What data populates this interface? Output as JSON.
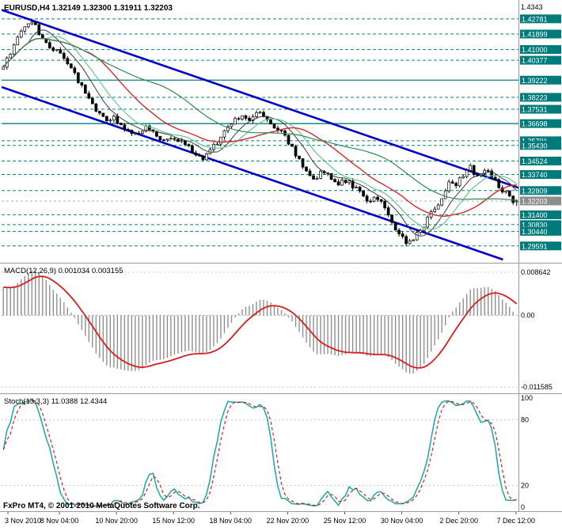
{
  "header": {
    "title": "EURUSD,H4 1.32149 1.32300 1.31911 1.32203"
  },
  "macd": {
    "header": "MACD(12,26,9) 0.001034 0.003155"
  },
  "stoch": {
    "header": "Stoch(13,3,3) 11.0388 12.4344"
  },
  "footer": {
    "copyright": "FxPro MT4, © 2001-2010 MetaQuotes Software Corp."
  },
  "chart_data": {
    "type": "candlestick",
    "symbol": "EURUSD",
    "timeframe": "H4",
    "title": "EURUSD,H4",
    "current_bar": {
      "open": 1.32149,
      "high": 1.323,
      "low": 1.31911,
      "close": 1.32203
    },
    "y_range": [
      1.288,
      1.436
    ],
    "num_bars": 145,
    "axis_max_label": "1.4343",
    "current_price": {
      "label": "1.32203",
      "value": 1.32203
    },
    "price_levels": [
      {
        "label": "1.42781",
        "value": 1.42781,
        "solid": false
      },
      {
        "label": "1.41899",
        "value": 1.41899,
        "solid": false
      },
      {
        "label": "1.41000",
        "value": 1.41,
        "solid": false
      },
      {
        "label": "1.40377",
        "value": 1.40377,
        "solid": false
      },
      {
        "label": "1.39222",
        "value": 1.39222,
        "solid": true
      },
      {
        "label": "1.38223",
        "value": 1.38223,
        "solid": false
      },
      {
        "label": "1.37531",
        "value": 1.37531,
        "solid": false
      },
      {
        "label": "1.36698",
        "value": 1.36698,
        "solid": true
      },
      {
        "label": "1.35701",
        "value": 1.35701,
        "solid": false
      },
      {
        "label": "1.35430",
        "value": 1.3543,
        "solid": false
      },
      {
        "label": "1.34524",
        "value": 1.34524,
        "solid": false
      },
      {
        "label": "1.33740",
        "value": 1.3374,
        "solid": false
      },
      {
        "label": "1.32809",
        "value": 1.32809,
        "solid": false
      },
      {
        "label": "1.31400",
        "value": 1.314,
        "solid": false
      },
      {
        "label": "1.30830",
        "value": 1.3083,
        "solid": false
      },
      {
        "label": "1.30440",
        "value": 1.3044,
        "solid": false
      },
      {
        "label": "1.29591",
        "value": 1.29591,
        "solid": false
      }
    ],
    "channel_lines": [
      {
        "name": "upper-trendline",
        "x1": 0.0,
        "p1": 1.433,
        "x2": 1.088,
        "p2": 1.3206
      },
      {
        "name": "lower-trendline",
        "x1": 0.0,
        "p1": 1.3882,
        "x2": 0.97,
        "p2": 1.288
      }
    ],
    "moving_averages": [
      {
        "period": 8,
        "color": "#3a3a3a",
        "width": 1.0
      },
      {
        "period": 13,
        "color": "#5fc88f",
        "width": 1.2
      },
      {
        "period": 24,
        "color": "#d42a2a",
        "width": 1.4
      },
      {
        "period": 45,
        "color": "#2e8b57",
        "width": 1.2
      }
    ],
    "indicators": {
      "macd": {
        "fast": 12,
        "slow": 26,
        "signal": 9,
        "values": [
          0.001034,
          0.003155
        ]
      },
      "stochastic": {
        "k": 13,
        "d": 3,
        "slowing": 3,
        "values": [
          11.0388,
          12.4344
        ]
      }
    },
    "macd_scale_labels": {
      "top": "0.008642",
      "zero": "0.00",
      "bottom": "-0.011585"
    },
    "stoch_scale_labels": [
      {
        "label": "100",
        "value": 100
      },
      {
        "label": "80",
        "value": 80
      },
      {
        "label": "20",
        "value": 20
      },
      {
        "label": "0",
        "value": 0
      }
    ],
    "time_labels": [
      "3 Nov 2010",
      "8 Nov 04:00",
      "10 Nov 20:00",
      "15 Nov 12:00",
      "18 Nov 04:00",
      "22 Nov 20:00",
      "25 Nov 12:00",
      "30 Nov 04:00",
      "2 Dec 20:00",
      "7 Dec 12:00"
    ],
    "price_path": [
      [
        0.0,
        1.3985
      ],
      [
        0.012,
        1.406
      ],
      [
        0.025,
        1.414
      ],
      [
        0.04,
        1.423
      ],
      [
        0.052,
        1.4268
      ],
      [
        0.065,
        1.4225
      ],
      [
        0.08,
        1.414
      ],
      [
        0.092,
        1.408
      ],
      [
        0.105,
        1.411
      ],
      [
        0.118,
        1.406
      ],
      [
        0.13,
        1.399
      ],
      [
        0.142,
        1.393
      ],
      [
        0.155,
        1.3885
      ],
      [
        0.17,
        1.38
      ],
      [
        0.185,
        1.3725
      ],
      [
        0.2,
        1.3665
      ],
      [
        0.212,
        1.37
      ],
      [
        0.223,
        1.3685
      ],
      [
        0.24,
        1.365
      ],
      [
        0.258,
        1.3605
      ],
      [
        0.275,
        1.365
      ],
      [
        0.292,
        1.362
      ],
      [
        0.31,
        1.358
      ],
      [
        0.325,
        1.361
      ],
      [
        0.34,
        1.357
      ],
      [
        0.355,
        1.354
      ],
      [
        0.37,
        1.3505
      ],
      [
        0.388,
        1.3458
      ],
      [
        0.402,
        1.351
      ],
      [
        0.418,
        1.3575
      ],
      [
        0.433,
        1.364
      ],
      [
        0.45,
        1.369
      ],
      [
        0.468,
        1.374
      ],
      [
        0.483,
        1.3705
      ],
      [
        0.5,
        1.373
      ],
      [
        0.515,
        1.369
      ],
      [
        0.53,
        1.364
      ],
      [
        0.548,
        1.3585
      ],
      [
        0.563,
        1.3515
      ],
      [
        0.578,
        1.345
      ],
      [
        0.595,
        1.3395
      ],
      [
        0.61,
        1.3365
      ],
      [
        0.625,
        1.3395
      ],
      [
        0.64,
        1.336
      ],
      [
        0.655,
        1.333
      ],
      [
        0.67,
        1.334
      ],
      [
        0.685,
        1.33
      ],
      [
        0.7,
        1.325
      ],
      [
        0.715,
        1.3205
      ],
      [
        0.728,
        1.3235
      ],
      [
        0.742,
        1.318
      ],
      [
        0.755,
        1.312
      ],
      [
        0.768,
        1.306
      ],
      [
        0.78,
        1.3
      ],
      [
        0.79,
        1.2972
      ],
      [
        0.802,
        1.3005
      ],
      [
        0.815,
        1.307
      ],
      [
        0.828,
        1.313
      ],
      [
        0.842,
        1.3195
      ],
      [
        0.856,
        1.327
      ],
      [
        0.87,
        1.334
      ],
      [
        0.882,
        1.333
      ],
      [
        0.895,
        1.338
      ],
      [
        0.908,
        1.342
      ],
      [
        0.92,
        1.338
      ],
      [
        0.932,
        1.336
      ],
      [
        0.944,
        1.3405
      ],
      [
        0.956,
        1.336
      ],
      [
        0.968,
        1.331
      ],
      [
        0.98,
        1.327
      ],
      [
        0.99,
        1.3235
      ],
      [
        1.0,
        1.322
      ]
    ],
    "synthesis": {
      "seed": 20101207,
      "ar": 0.45,
      "noise": 0.0045,
      "wick": 0.0016,
      "macd_bias": [
        0.0025,
        -0.0035
      ]
    },
    "colors": {
      "background": "#ffffff",
      "foreground": "#000000",
      "bull": "#ffffff",
      "bear": "#000000",
      "grid_level": "#008080",
      "level_box": "#007a7a",
      "current_price_box": "#8c8c8c",
      "channel": "#0000c8",
      "macd_histogram": "#8f8f8f",
      "macd_signal": "#d81f1f",
      "stoch_main": "#18a8a8",
      "stoch_signal": "#d01010",
      "separator": "#9a9a9a"
    }
  }
}
